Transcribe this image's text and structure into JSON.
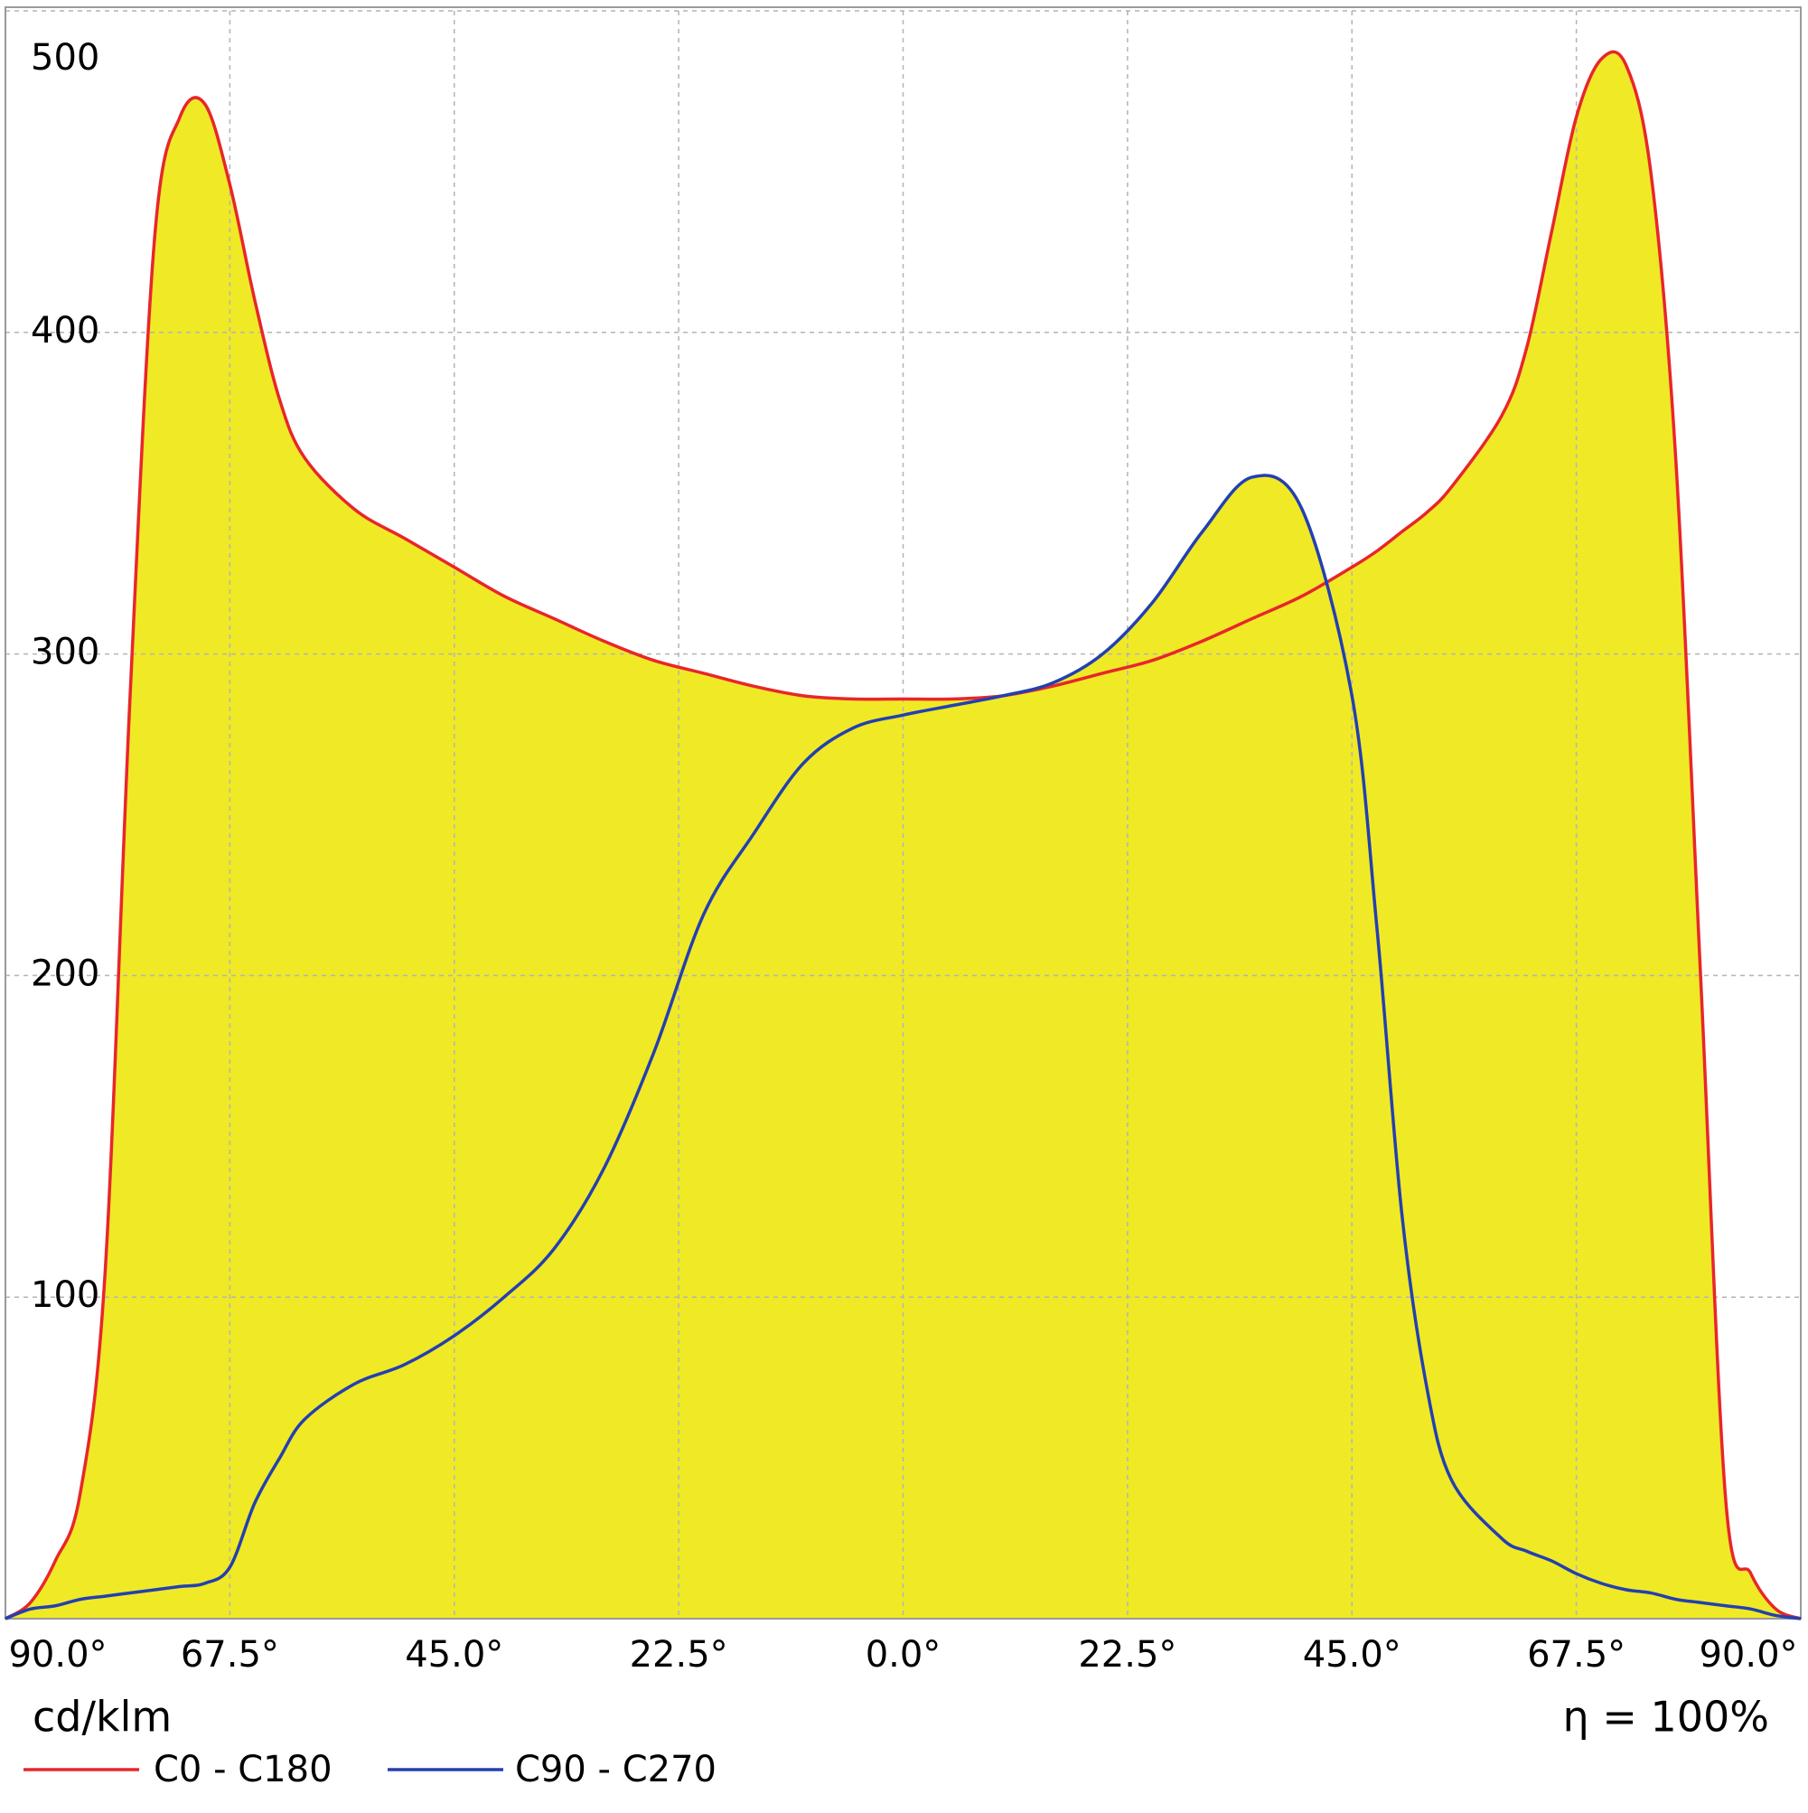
{
  "chart_data": {
    "type": "area",
    "y_unit": "cd/klm",
    "efficiency_label": "η = 100%",
    "x": [
      -90,
      -87.5,
      -85,
      -82.5,
      -80,
      -77.5,
      -75,
      -72.5,
      -70,
      -67.5,
      -65,
      -62.5,
      -60,
      -55,
      -50,
      -45,
      -40,
      -35,
      -30,
      -25,
      -20,
      -15,
      -10,
      -5,
      0,
      5,
      10,
      15,
      20,
      25,
      30,
      35,
      40,
      45,
      47.5,
      50,
      52.5,
      55,
      60,
      62.5,
      65,
      67.5,
      70,
      72.5,
      75,
      77.5,
      80,
      82.5,
      85,
      87.5,
      90
    ],
    "series": [
      {
        "name": "C0 - C180",
        "color": "#e8262b",
        "values": [
          0,
          5,
          18,
          39,
          108,
          287,
          431,
          467,
          471,
          446,
          410,
          379,
          361,
          345,
          336,
          327,
          318,
          311,
          304,
          298,
          294,
          290,
          287,
          286,
          286,
          286,
          287,
          290,
          294,
          298,
          304,
          311,
          318,
          327,
          332,
          338,
          344,
          352,
          374,
          395,
          431,
          467,
          485,
          483,
          449,
          359,
          197,
          36,
          14,
          3,
          0
        ]
      },
      {
        "name": "C90 - C270",
        "color": "#2340b0",
        "values": [
          0,
          3,
          4,
          6,
          7,
          8,
          9,
          10,
          11,
          16,
          36,
          50,
          62,
          73,
          79,
          88,
          100,
          115,
          140,
          176,
          219,
          244,
          266,
          277,
          281,
          284,
          287,
          291,
          300,
          316,
          338,
          355,
          345,
          287,
          215,
          126,
          72,
          43,
          25,
          21,
          18,
          14,
          11,
          9,
          8,
          6,
          5,
          4,
          3,
          1,
          0
        ]
      }
    ],
    "fill_color": "#f0e926",
    "xlim": [
      -90,
      90
    ],
    "xticks": [
      {
        "value": -90,
        "label": "90.0°"
      },
      {
        "value": -67.5,
        "label": "67.5°"
      },
      {
        "value": -45,
        "label": "45.0°"
      },
      {
        "value": -22.5,
        "label": "22.5°"
      },
      {
        "value": 0,
        "label": "0.0°"
      },
      {
        "value": 22.5,
        "label": "22.5°"
      },
      {
        "value": 45,
        "label": "45.0°"
      },
      {
        "value": 67.5,
        "label": "67.5°"
      },
      {
        "value": 90,
        "label": "90.0°"
      }
    ],
    "ylim": [
      0,
      500
    ],
    "yticks": [
      100,
      200,
      300,
      400,
      500
    ],
    "grid": true
  }
}
